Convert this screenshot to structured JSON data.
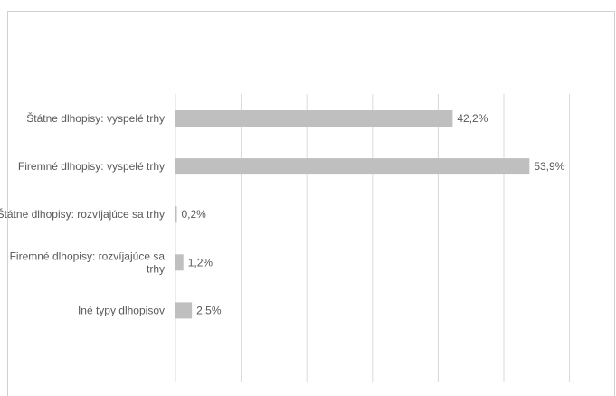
{
  "chart_data": {
    "type": "bar",
    "orientation": "horizontal",
    "categories": [
      [
        "Štátne dlhopisy: vyspelé trhy"
      ],
      [
        "Firemné dlhopisy: vyspelé trhy"
      ],
      [
        "Štátne dlhopisy: rozvíjajúce sa trhy"
      ],
      [
        "Firemné dlhopisy: rozvíjajúce sa",
        "trhy"
      ],
      [
        "Iné typy dlhopisov"
      ]
    ],
    "values": [
      42.2,
      53.9,
      0.2,
      1.2,
      2.5
    ],
    "value_labels": [
      "42,2%",
      "53,9%",
      "0,2%",
      "1,2%",
      "2,5%"
    ],
    "xlim": [
      0,
      60
    ],
    "gridlines": true,
    "tick_labels_visible": false,
    "bar_color": "#bfbfbf",
    "grid_color": "#d9d9d9",
    "label_color": "#595959"
  }
}
